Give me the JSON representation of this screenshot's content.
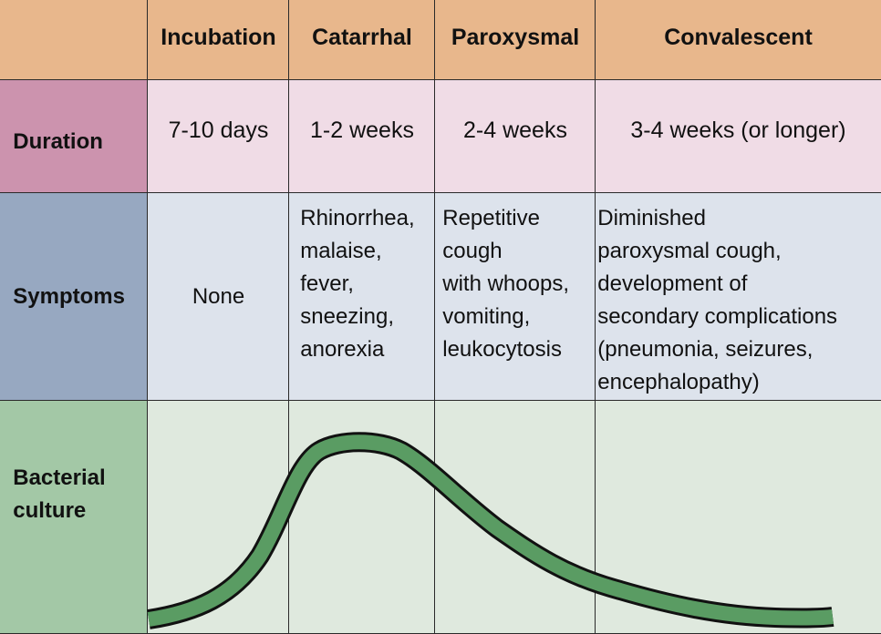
{
  "header": {
    "corner": "",
    "columns": [
      "Incubation",
      "Catarrhal",
      "Paroxysmal",
      "Convalescent"
    ]
  },
  "rows": {
    "duration": {
      "label": "Duration",
      "values": [
        "7-10 days",
        "1-2 weeks",
        "2-4 weeks",
        "3-4 weeks (or longer)"
      ]
    },
    "symptoms": {
      "label": "Symptoms",
      "values": [
        "None",
        "Rhinorrhea,\nmalaise,\nfever,\nsneezing,\nanorexia",
        "Repetitive\ncough\nwith whoops,\nvomiting,\nleukocytosis",
        "Diminished\nparoxysmal cough,\ndevelopment of\nsecondary complications\n(pneumonia, seizures,\nencephalopathy)"
      ]
    },
    "bacterial_culture": {
      "label": "Bacterial\nculture"
    }
  },
  "colors": {
    "header": "#e8b78c",
    "duration_label": "#cc93ae",
    "duration_cells": "#f0dce6",
    "symptoms_label": "#97a8c1",
    "symptoms_cells": "#dde3ec",
    "culture_label": "#a3c8a6",
    "culture_cells": "#dfe9de",
    "curve": "#5a9c63"
  }
}
